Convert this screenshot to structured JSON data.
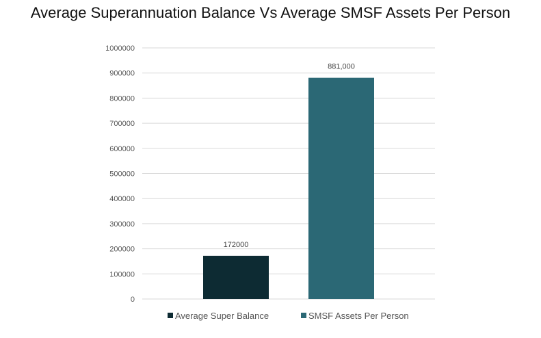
{
  "chart_data": {
    "type": "bar",
    "title": "Average Superannuation Balance Vs Average SMSF Assets Per Person",
    "categories": [
      "Average Super Balance",
      "SMSF Assets Per Person"
    ],
    "values": [
      172000,
      881000
    ],
    "data_labels": [
      "172000",
      "881,000"
    ],
    "colors": [
      "#0d2b33",
      "#2b6875"
    ],
    "ylim": [
      0,
      1000000
    ],
    "yticks": [
      0,
      100000,
      200000,
      300000,
      400000,
      500000,
      600000,
      700000,
      800000,
      900000,
      1000000
    ],
    "grid": true,
    "legend": "bottom",
    "xlabel": "",
    "ylabel": ""
  }
}
